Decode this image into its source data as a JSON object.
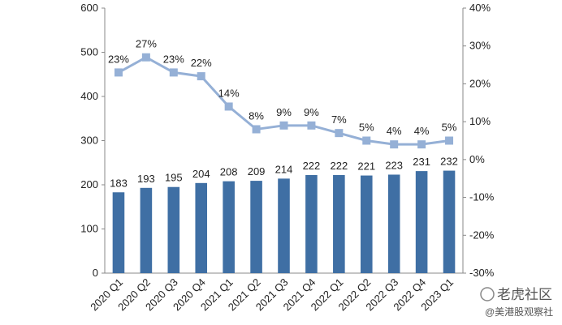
{
  "chart_data": {
    "type": "bar",
    "categories": [
      "2020 Q1",
      "2020 Q2",
      "2020 Q3",
      "2020 Q4",
      "2021 Q1",
      "2021 Q2",
      "2021 Q3",
      "2021 Q4",
      "2022 Q1",
      "2022 Q2",
      "2022 Q3",
      "2022 Q4",
      "2023 Q1"
    ],
    "series": [
      {
        "type": "bar",
        "axis": "left",
        "color": "#3f6fa4",
        "values": [
          183,
          193,
          195,
          204,
          208,
          209,
          214,
          222,
          222,
          221,
          223,
          231,
          232
        ],
        "labels": [
          "183",
          "193",
          "195",
          "204",
          "208",
          "209",
          "214",
          "222",
          "222",
          "221",
          "223",
          "231",
          "232"
        ]
      },
      {
        "type": "line",
        "axis": "right",
        "color": "#95b0d6",
        "marker": "square",
        "values": [
          23,
          27,
          23,
          22,
          14,
          8,
          9,
          9,
          7,
          5,
          4,
          4,
          5
        ],
        "labels": [
          "23%",
          "27%",
          "23%",
          "22%",
          "14%",
          "8%",
          "9%",
          "9%",
          "7%",
          "5%",
          "4%",
          "4%",
          "5%"
        ]
      }
    ],
    "left_axis": {
      "min": 0,
      "max": 600,
      "step": 100,
      "ticks": [
        "0",
        "100",
        "200",
        "300",
        "400",
        "500",
        "600"
      ]
    },
    "right_axis": {
      "min": -30,
      "max": 40,
      "step": 10,
      "ticks": [
        "-30%",
        "-20%",
        "-10%",
        "0%",
        "10%",
        "20%",
        "30%",
        "40%"
      ]
    },
    "grid": false,
    "legend": "none"
  },
  "watermark": {
    "line1": "老虎社区",
    "line2": "@美港股观察社"
  }
}
